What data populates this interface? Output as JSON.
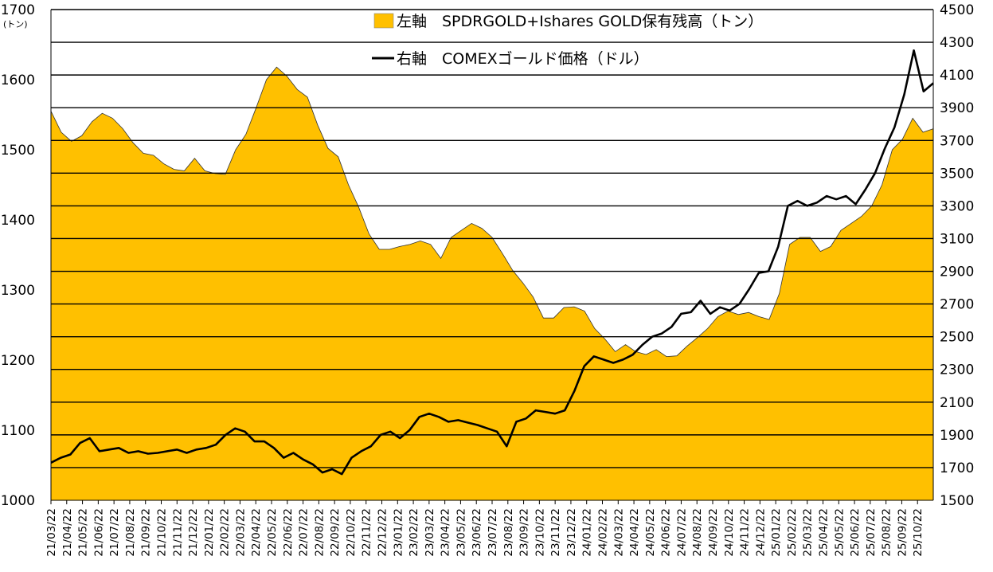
{
  "chart_data": {
    "type": "line",
    "left_axis_unit": "(トン)",
    "left_ylim": [
      1000,
      1700
    ],
    "left_ticks": [
      1000,
      1100,
      1200,
      1300,
      1400,
      1500,
      1600,
      1700
    ],
    "right_ylim": [
      1500,
      4500
    ],
    "right_ticks": [
      1500,
      1700,
      1900,
      2100,
      2300,
      2500,
      2700,
      2900,
      3100,
      3300,
      3500,
      3700,
      3900,
      4100,
      4300,
      4500
    ],
    "grid": "horizontal",
    "legend_position": "top-right",
    "x_ticks": [
      "21/03/22",
      "21/04/22",
      "21/05/22",
      "21/06/22",
      "21/07/22",
      "21/08/22",
      "21/09/22",
      "21/10/22",
      "21/11/22",
      "21/12/22",
      "22/01/22",
      "22/02/22",
      "22/03/22",
      "22/04/22",
      "22/05/22",
      "22/06/22",
      "22/07/22",
      "22/08/22",
      "22/09/22",
      "22/10/22",
      "22/11/22",
      "22/12/22",
      "23/01/22",
      "23/02/22",
      "23/03/22",
      "23/04/22",
      "23/05/22",
      "23/06/22",
      "23/07/22",
      "23/08/22",
      "23/09/22",
      "23/10/22",
      "23/11/22",
      "23/12/22",
      "24/01/22",
      "24/02/22",
      "24/03/22",
      "24/04/22",
      "24/05/22",
      "24/06/22",
      "24/07/22",
      "24/08/22",
      "24/09/22",
      "24/10/22",
      "24/11/22",
      "24/12/22",
      "25/01/22",
      "25/02/22",
      "25/03/22",
      "25/04/22",
      "25/05/22",
      "25/06/22",
      "25/07/22",
      "25/08/22",
      "25/09/22",
      "25/10/22"
    ],
    "series": [
      {
        "name": "左軸　SPDRGOLD+Ishares GOLD保有残高（トン）",
        "axis": "left",
        "chart_type": "area",
        "color": "#FFC000",
        "values": [
          1555,
          1525,
          1512,
          1520,
          1540,
          1552,
          1545,
          1530,
          1510,
          1495,
          1492,
          1480,
          1472,
          1470,
          1488,
          1470,
          1466,
          1465,
          1500,
          1522,
          1560,
          1600,
          1618,
          1605,
          1586,
          1575,
          1535,
          1502,
          1490,
          1450,
          1418,
          1380,
          1358,
          1358,
          1362,
          1365,
          1370,
          1365,
          1345,
          1375,
          1385,
          1395,
          1388,
          1375,
          1352,
          1328,
          1310,
          1290,
          1260,
          1260,
          1275,
          1276,
          1270,
          1245,
          1230,
          1212,
          1222,
          1212,
          1208,
          1215,
          1205,
          1206,
          1220,
          1232,
          1245,
          1262,
          1270,
          1265,
          1268,
          1262,
          1258,
          1295,
          1365,
          1375,
          1375,
          1355,
          1362,
          1385,
          1395,
          1405,
          1420,
          1450,
          1500,
          1515,
          1545,
          1525,
          1530
        ]
      },
      {
        "name": "右軸　COMEXゴールド価格（ドル）",
        "axis": "right",
        "chart_type": "line",
        "color": "#000000",
        "values": [
          1730,
          1760,
          1780,
          1850,
          1880,
          1800,
          1810,
          1820,
          1790,
          1800,
          1785,
          1790,
          1800,
          1810,
          1790,
          1810,
          1820,
          1840,
          1900,
          1940,
          1920,
          1860,
          1860,
          1820,
          1760,
          1790,
          1750,
          1720,
          1670,
          1690,
          1660,
          1760,
          1800,
          1830,
          1900,
          1920,
          1880,
          1930,
          2010,
          2030,
          2010,
          1980,
          1990,
          1975,
          1960,
          1940,
          1920,
          1830,
          1980,
          2000,
          2050,
          2040,
          2030,
          2050,
          2170,
          2320,
          2380,
          2360,
          2340,
          2360,
          2390,
          2450,
          2500,
          2520,
          2560,
          2640,
          2650,
          2720,
          2640,
          2680,
          2660,
          2700,
          2790,
          2890,
          2900,
          3050,
          3300,
          3330,
          3300,
          3320,
          3360,
          3340,
          3360,
          3310,
          3400,
          3500,
          3650,
          3780,
          3980,
          4250,
          4000,
          4050
        ]
      }
    ]
  }
}
